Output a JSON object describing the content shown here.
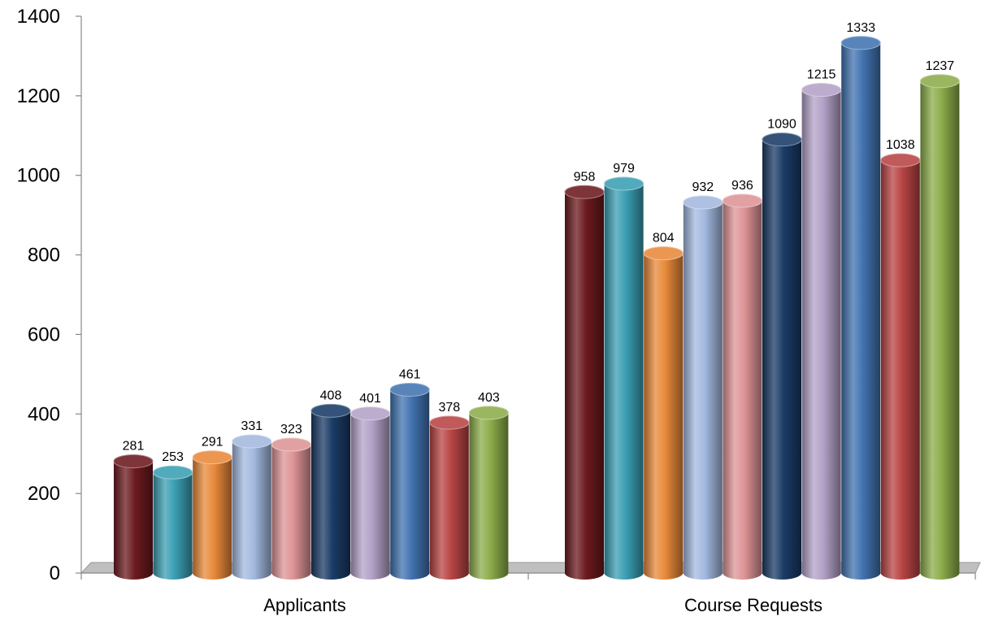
{
  "chart_data": {
    "type": "bar",
    "style": "3d-cylinder",
    "title": "",
    "xlabel": "",
    "ylabel": "",
    "ylim": [
      0,
      1400
    ],
    "yticks": [
      0,
      200,
      400,
      600,
      800,
      1000,
      1200,
      1400
    ],
    "grid": false,
    "legend": "none",
    "categories": [
      "Applicants",
      "Course Requests"
    ],
    "series": [
      {
        "values": [
          281,
          958
        ],
        "color": "#6b1a1e"
      },
      {
        "values": [
          253,
          979
        ],
        "color": "#3a9fb3"
      },
      {
        "values": [
          291,
          804
        ],
        "color": "#e8893a"
      },
      {
        "values": [
          331,
          932
        ],
        "color": "#a3b9df"
      },
      {
        "values": [
          323,
          936
        ],
        "color": "#dd9495"
      },
      {
        "values": [
          408,
          1090
        ],
        "color": "#1a3b66"
      },
      {
        "values": [
          401,
          1215
        ],
        "color": "#b3a1c7"
      },
      {
        "values": [
          461,
          1333
        ],
        "color": "#4173b0"
      },
      {
        "values": [
          378,
          1038
        ],
        "color": "#b84444"
      },
      {
        "values": [
          403,
          1237
        ],
        "color": "#8cac4a"
      }
    ]
  }
}
